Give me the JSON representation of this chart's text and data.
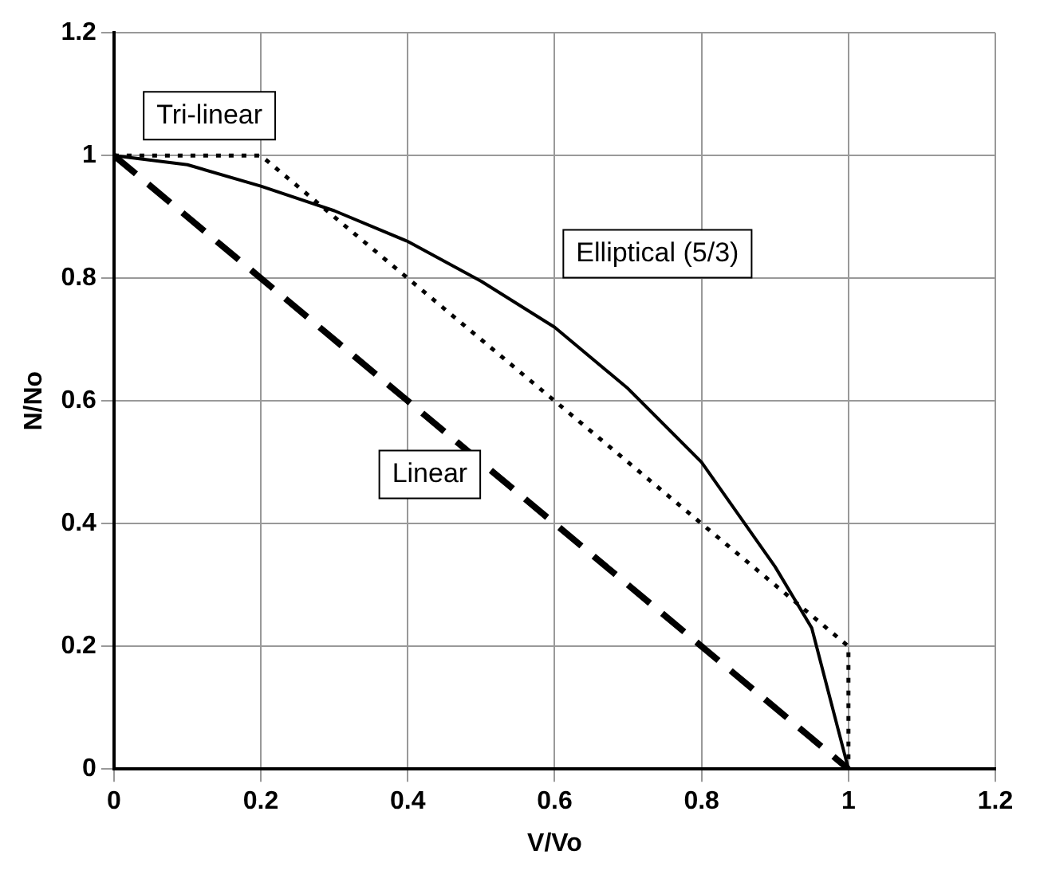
{
  "chart_data": {
    "type": "line",
    "xlabel": "V/Vo",
    "ylabel": "N/No",
    "xlim": [
      0,
      1.2
    ],
    "ylim": [
      0,
      1.2
    ],
    "xticks": [
      0,
      0.2,
      0.4,
      0.6,
      0.8,
      1,
      1.2
    ],
    "yticks": [
      0,
      0.2,
      0.4,
      0.6,
      0.8,
      1,
      1.2
    ],
    "grid": true,
    "legend": false,
    "marker": "none",
    "series": [
      {
        "name": "Elliptical (5/3)",
        "color": "#000000",
        "line_style": "solid",
        "x": [
          0,
          0.1,
          0.2,
          0.3,
          0.4,
          0.5,
          0.6,
          0.7,
          0.8,
          0.9,
          0.95,
          1
        ],
        "values": [
          1,
          0.985,
          0.95,
          0.91,
          0.86,
          0.795,
          0.72,
          0.62,
          0.5,
          0.33,
          0.23,
          0
        ]
      },
      {
        "name": "Tri-linear",
        "color": "#000000",
        "line_style": "dotted",
        "x": [
          0,
          0.2,
          1,
          1
        ],
        "values": [
          1,
          1,
          0.2,
          0
        ]
      },
      {
        "name": "Linear",
        "color": "#000000",
        "line_style": "dashed",
        "x": [
          0,
          1
        ],
        "values": [
          1,
          0
        ]
      }
    ]
  }
}
